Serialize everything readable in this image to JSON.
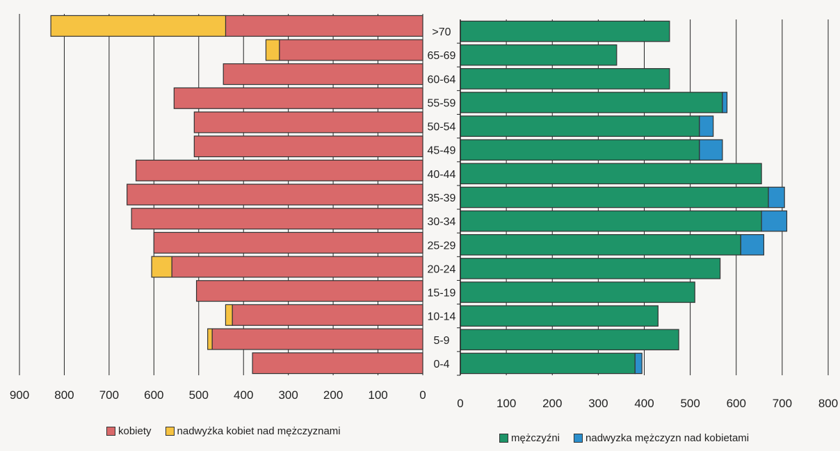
{
  "chart_data": {
    "type": "bar",
    "orientation": "horizontal",
    "categories": [
      "0-4",
      "5-9",
      "10-14",
      "15-19",
      "20-24",
      "25-29",
      "30-34",
      "35-39",
      "40-44",
      "45-49",
      "50-54",
      "55-59",
      "60-64",
      "65-69",
      ">70"
    ],
    "category_labels": [
      "0-4",
      "5-9",
      "10-14",
      "15-19",
      "20-24",
      "25-29",
      "30-34",
      "35-39",
      "40-44",
      "45-49",
      "50-54",
      "55-59",
      "60-64",
      "65-69",
      ">70"
    ],
    "left": {
      "xlim": [
        0,
        900
      ],
      "ticks": [
        "900",
        "800",
        "700",
        "600",
        "500",
        "400",
        "300",
        "200",
        "100",
        "0"
      ],
      "series": [
        {
          "name": "kobiety",
          "color": "#d9696a",
          "values": [
            380,
            470,
            425,
            505,
            560,
            600,
            650,
            660,
            640,
            510,
            510,
            555,
            445,
            320,
            440
          ]
        },
        {
          "name": "nadwyżka kobiet nad mężczyznami",
          "color": "#f6c342",
          "values": [
            0,
            10,
            15,
            0,
            45,
            0,
            0,
            0,
            0,
            0,
            0,
            0,
            0,
            30,
            390
          ]
        }
      ]
    },
    "right": {
      "xlim": [
        0,
        800
      ],
      "ticks": [
        "0",
        "100",
        "200",
        "300",
        "400",
        "500",
        "600",
        "700",
        "800"
      ],
      "series": [
        {
          "name": "mężczyźni",
          "color": "#1e9468",
          "values": [
            380,
            475,
            430,
            510,
            565,
            610,
            655,
            670,
            655,
            520,
            520,
            570,
            455,
            340,
            455
          ]
        },
        {
          "name": "nadwyzka mężczyzn nad kobietami",
          "color": "#2c8fcc",
          "values": [
            15,
            0,
            0,
            0,
            0,
            50,
            55,
            35,
            0,
            50,
            30,
            10,
            0,
            0,
            0
          ]
        }
      ]
    },
    "legend_placement": "bottom",
    "grid": true
  }
}
